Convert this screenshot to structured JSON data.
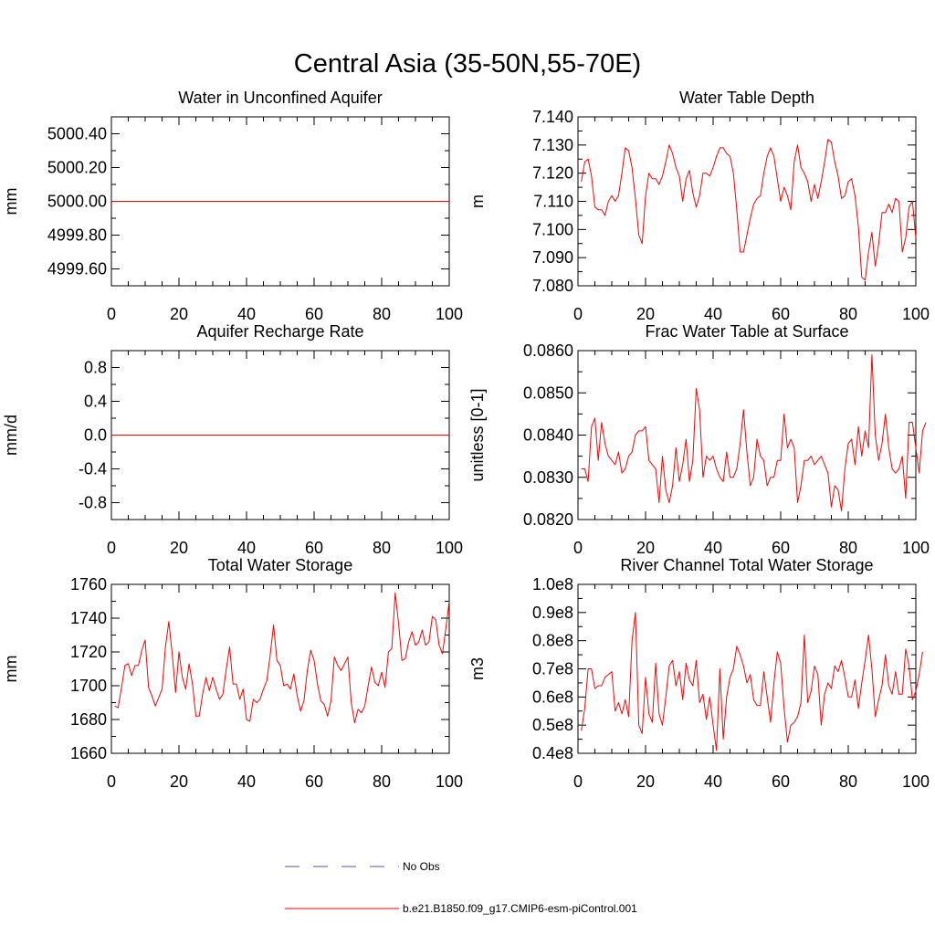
{
  "title": "Central Asia (35-50N,55-70E)",
  "colors": {
    "series": "#ff0000",
    "obs": "#5555aa",
    "axis": "#000000"
  },
  "legend": {
    "obs_label": "No Obs",
    "model_label": "b.e21.B1850.f09_g17.CMIP6-esm-piControl.001"
  },
  "chart_data": [
    {
      "type": "line",
      "title": "Water in Unconfined Aquifer",
      "ylabel": "mm",
      "xlim": [
        0,
        100
      ],
      "ylim": [
        4999.5,
        5000.5
      ],
      "xticks": [
        0,
        20,
        40,
        60,
        80,
        100
      ],
      "xtick_labels": [
        "0",
        "20",
        "40",
        "60",
        "80",
        "100"
      ],
      "yticks": [
        4999.6,
        4999.8,
        5000.0,
        5000.2,
        5000.4
      ],
      "ytick_labels": [
        "4999.60",
        "4999.80",
        "5000.00",
        "5000.20",
        "5000.40"
      ],
      "x_start": 0,
      "values": [
        5000.0,
        5000.0
      ]
    },
    {
      "type": "line",
      "title": "Water Table Depth",
      "ylabel": "m",
      "xlim": [
        0,
        100
      ],
      "ylim": [
        7.08,
        7.14
      ],
      "xticks": [
        0,
        20,
        40,
        60,
        80,
        100
      ],
      "xtick_labels": [
        "0",
        "20",
        "40",
        "60",
        "80",
        "100"
      ],
      "yticks": [
        7.08,
        7.09,
        7.1,
        7.11,
        7.12,
        7.13,
        7.14
      ],
      "ytick_labels": [
        "7.080",
        "7.090",
        "7.100",
        "7.110",
        "7.120",
        "7.130",
        "7.140"
      ],
      "x_start": 1,
      "values": [
        7.117,
        7.124,
        7.125,
        7.119,
        7.108,
        7.107,
        7.107,
        7.105,
        7.11,
        7.112,
        7.11,
        7.112,
        7.12,
        7.129,
        7.128,
        7.122,
        7.111,
        7.098,
        7.095,
        7.112,
        7.12,
        7.118,
        7.118,
        7.116,
        7.119,
        7.124,
        7.13,
        7.127,
        7.122,
        7.119,
        7.11,
        7.118,
        7.121,
        7.113,
        7.108,
        7.112,
        7.12,
        7.12,
        7.119,
        7.122,
        7.126,
        7.129,
        7.129,
        7.127,
        7.126,
        7.12,
        7.107,
        7.092,
        7.092,
        7.098,
        7.104,
        7.109,
        7.111,
        7.112,
        7.12,
        7.126,
        7.129,
        7.126,
        7.118,
        7.11,
        7.115,
        7.112,
        7.107,
        7.124,
        7.13,
        7.122,
        7.12,
        7.117,
        7.11,
        7.116,
        7.111,
        7.117,
        7.124,
        7.132,
        7.131,
        7.124,
        7.119,
        7.111,
        7.112,
        7.117,
        7.118,
        7.112,
        7.101,
        7.083,
        7.082,
        7.092,
        7.099,
        7.087,
        7.095,
        7.106,
        7.106,
        7.109,
        7.106,
        7.111,
        7.11,
        7.092,
        7.097,
        7.108,
        7.11,
        7.097
      ]
    },
    {
      "type": "line",
      "title": "Aquifer Recharge Rate",
      "ylabel": "mm/d",
      "xlim": [
        0,
        100
      ],
      "ylim": [
        -1.0,
        1.0
      ],
      "xticks": [
        0,
        20,
        40,
        60,
        80,
        100
      ],
      "xtick_labels": [
        "0",
        "20",
        "40",
        "60",
        "80",
        "100"
      ],
      "yticks": [
        -0.8,
        -0.4,
        0.0,
        0.4,
        0.8
      ],
      "ytick_labels": [
        "-0.8",
        "-0.4",
        "0.0",
        "0.4",
        "0.8"
      ],
      "x_start": 0,
      "values": [
        0.0,
        0.0
      ]
    },
    {
      "type": "line",
      "title": "Frac Water Table at Surface",
      "ylabel": "unitless [0-1]",
      "xlim": [
        0,
        100
      ],
      "ylim": [
        0.082,
        0.086
      ],
      "xticks": [
        0,
        20,
        40,
        60,
        80,
        100
      ],
      "xtick_labels": [
        "0",
        "20",
        "40",
        "60",
        "80",
        "100"
      ],
      "yticks": [
        0.082,
        0.083,
        0.084,
        0.085,
        0.086
      ],
      "ytick_labels": [
        "0.0820",
        "0.0830",
        "0.0840",
        "0.0850",
        "0.0860"
      ],
      "x_start": 1,
      "values": [
        0.0832,
        0.0832,
        0.0829,
        0.0842,
        0.0844,
        0.0834,
        0.0843,
        0.0838,
        0.0835,
        0.0834,
        0.0833,
        0.0836,
        0.0831,
        0.0832,
        0.0835,
        0.0836,
        0.084,
        0.0841,
        0.0841,
        0.0842,
        0.0834,
        0.0833,
        0.0832,
        0.0824,
        0.0835,
        0.0827,
        0.0824,
        0.0828,
        0.0837,
        0.0829,
        0.0833,
        0.0839,
        0.0829,
        0.0834,
        0.0851,
        0.0846,
        0.083,
        0.0835,
        0.0834,
        0.0835,
        0.0832,
        0.083,
        0.0829,
        0.0836,
        0.083,
        0.083,
        0.0832,
        0.0838,
        0.0846,
        0.0836,
        0.0828,
        0.083,
        0.0839,
        0.0835,
        0.0834,
        0.0828,
        0.083,
        0.083,
        0.0834,
        0.0834,
        0.0845,
        0.0837,
        0.0839,
        0.0837,
        0.0824,
        0.0828,
        0.0834,
        0.0834,
        0.0835,
        0.0833,
        0.0834,
        0.0835,
        0.0833,
        0.0831,
        0.0823,
        0.0828,
        0.0827,
        0.0822,
        0.0832,
        0.0838,
        0.0839,
        0.0833,
        0.0842,
        0.0835,
        0.0841,
        0.0837,
        0.0859,
        0.084,
        0.0834,
        0.0838,
        0.0845,
        0.0837,
        0.0832,
        0.0831,
        0.0832,
        0.0835,
        0.0825,
        0.0843,
        0.0843,
        0.0837,
        0.0831,
        0.0841,
        0.0843
      ]
    },
    {
      "type": "line",
      "title": "Total Water Storage",
      "ylabel": "mm",
      "xlim": [
        0,
        100
      ],
      "ylim": [
        1660,
        1760
      ],
      "xticks": [
        0,
        20,
        40,
        60,
        80,
        100
      ],
      "xtick_labels": [
        "0",
        "20",
        "40",
        "60",
        "80",
        "100"
      ],
      "yticks": [
        1660,
        1680,
        1700,
        1720,
        1740,
        1760
      ],
      "ytick_labels": [
        "1660",
        "1680",
        "1700",
        "1720",
        "1740",
        "1760"
      ],
      "x_start": 1,
      "values": [
        1688,
        1687,
        1699,
        1712,
        1713,
        1706,
        1712,
        1712,
        1721,
        1727,
        1699,
        1694,
        1688,
        1693,
        1698,
        1723,
        1738,
        1719,
        1696,
        1720,
        1705,
        1698,
        1713,
        1701,
        1682,
        1682,
        1695,
        1705,
        1697,
        1705,
        1698,
        1692,
        1695,
        1710,
        1723,
        1701,
        1701,
        1692,
        1698,
        1680,
        1679,
        1692,
        1690,
        1692,
        1698,
        1703,
        1718,
        1736,
        1715,
        1712,
        1700,
        1701,
        1698,
        1707,
        1694,
        1685,
        1691,
        1709,
        1721,
        1715,
        1701,
        1691,
        1689,
        1682,
        1691,
        1717,
        1712,
        1709,
        1713,
        1717,
        1690,
        1678,
        1686,
        1684,
        1688,
        1700,
        1711,
        1702,
        1700,
        1708,
        1699,
        1720,
        1722,
        1755,
        1737,
        1715,
        1716,
        1726,
        1732,
        1724,
        1726,
        1733,
        1724,
        1726,
        1741,
        1739,
        1724,
        1719,
        1734,
        1750
      ]
    },
    {
      "type": "line",
      "title": "River Channel Total Water Storage",
      "ylabel": "m3",
      "xlim": [
        0,
        100
      ],
      "ylim": [
        40000000,
        100000000
      ],
      "xticks": [
        0,
        20,
        40,
        60,
        80,
        100
      ],
      "xtick_labels": [
        "0",
        "20",
        "40",
        "60",
        "80",
        "100"
      ],
      "yticks": [
        40000000,
        50000000,
        60000000,
        70000000,
        80000000,
        90000000,
        100000000
      ],
      "ytick_labels": [
        "0.4e8",
        "0.5e8",
        "0.6e8",
        "0.7e8",
        "0.8e8",
        "0.9e8",
        "1.0e8"
      ],
      "x_start": 1,
      "values": [
        48000000,
        56000000,
        70000000,
        70000000,
        63000000,
        64000000,
        64000000,
        67000000,
        68000000,
        69000000,
        55000000,
        58000000,
        54000000,
        59000000,
        53000000,
        80000000,
        90000000,
        50000000,
        47000000,
        67000000,
        54000000,
        51000000,
        72000000,
        54000000,
        50000000,
        60000000,
        71000000,
        73000000,
        64000000,
        69000000,
        59000000,
        72000000,
        66000000,
        64000000,
        73000000,
        58000000,
        61000000,
        52000000,
        60000000,
        50000000,
        41000000,
        70000000,
        45000000,
        60000000,
        67000000,
        70000000,
        78000000,
        75000000,
        71000000,
        65000000,
        68000000,
        59000000,
        57000000,
        57000000,
        69000000,
        60000000,
        51000000,
        65000000,
        76000000,
        72000000,
        56000000,
        44000000,
        50000000,
        51000000,
        53000000,
        58000000,
        82000000,
        58000000,
        62000000,
        71000000,
        68000000,
        50000000,
        61000000,
        65000000,
        63000000,
        71000000,
        69000000,
        73000000,
        67000000,
        60000000,
        60000000,
        66000000,
        56000000,
        65000000,
        73000000,
        82000000,
        70000000,
        53000000,
        59000000,
        64000000,
        75000000,
        64000000,
        61000000,
        69000000,
        61000000,
        61000000,
        77000000,
        71000000,
        59000000,
        62000000,
        68000000,
        76000000
      ]
    }
  ]
}
